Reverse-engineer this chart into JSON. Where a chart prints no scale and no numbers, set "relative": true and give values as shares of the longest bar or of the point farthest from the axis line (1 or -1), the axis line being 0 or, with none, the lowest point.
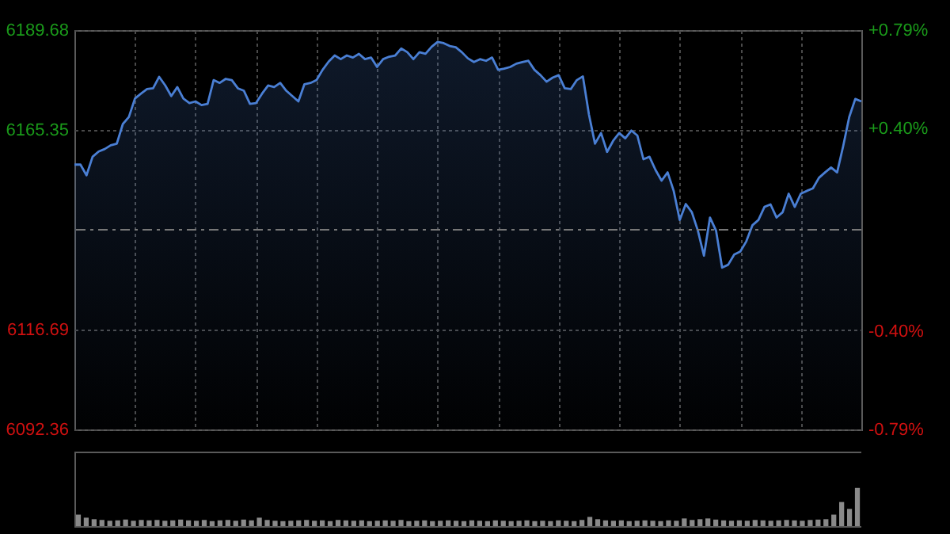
{
  "chart_data": [
    {
      "type": "area",
      "ylim": [
        6092.36,
        6189.68
      ],
      "yticks": [
        6092.36,
        6116.69,
        6165.35,
        6189.68
      ],
      "y2lim": [
        -0.79,
        0.79
      ],
      "y2ticks": [
        {
          "value": 0.79,
          "label": "+0.79%"
        },
        {
          "value": 0.4,
          "label": "+0.40%"
        },
        {
          "value": -0.4,
          "label": "-0.40%"
        },
        {
          "value": -0.79,
          "label": "-0.79%"
        }
      ],
      "grid": true,
      "line_style": "solid",
      "categories": [
        null,
        null,
        null,
        null,
        null,
        null,
        null,
        null,
        null,
        null,
        null,
        null,
        null,
        null,
        null,
        null,
        null,
        null,
        null,
        null,
        null,
        null,
        null,
        null,
        null,
        null,
        null,
        null,
        null,
        null,
        null,
        null,
        null,
        null,
        null,
        null,
        null,
        null,
        null,
        null,
        null,
        null,
        null,
        null,
        null,
        null,
        null,
        null,
        null,
        null,
        null,
        null,
        null,
        null,
        null,
        null,
        null,
        null,
        null,
        null,
        null,
        null,
        null,
        null,
        null,
        null,
        null,
        null,
        null,
        null,
        null,
        null,
        null,
        null,
        null,
        null,
        null,
        null,
        null,
        null,
        null,
        null,
        null,
        null,
        null,
        null,
        null,
        null,
        null,
        null,
        null,
        null,
        null,
        null,
        null,
        null,
        null,
        null,
        null,
        null,
        null,
        null,
        null,
        null,
        null,
        null,
        null,
        null,
        null,
        null,
        null,
        null,
        null,
        null,
        null,
        null,
        null,
        null,
        null,
        null,
        null,
        null,
        null,
        null,
        null,
        null,
        null,
        null,
        null,
        null,
        null
      ],
      "ref_lines": [
        {
          "axis": "y",
          "value": 6141.02,
          "line_style": "dashed",
          "color": "#777777"
        }
      ],
      "series": [
        {
          "color": "#4a7fd4",
          "values": [
            6156.9,
            6156.9,
            6154.3,
            6158.8,
            6160.1,
            6160.7,
            6161.6,
            6162.0,
            6166.8,
            6168.5,
            6173.0,
            6174.2,
            6175.3,
            6175.5,
            6178.3,
            6176.2,
            6173.6,
            6175.8,
            6173.0,
            6171.9,
            6172.3,
            6171.4,
            6171.7,
            6177.5,
            6176.8,
            6177.8,
            6177.5,
            6175.5,
            6174.9,
            6171.7,
            6171.9,
            6174.2,
            6176.2,
            6175.8,
            6176.8,
            6174.9,
            6173.6,
            6172.3,
            6176.5,
            6176.8,
            6177.5,
            6180.0,
            6182.0,
            6183.5,
            6182.6,
            6183.5,
            6183.0,
            6183.9,
            6182.6,
            6183.0,
            6180.7,
            6182.6,
            6183.2,
            6183.5,
            6185.2,
            6184.3,
            6182.6,
            6184.3,
            6183.9,
            6185.6,
            6186.8,
            6186.5,
            6185.8,
            6185.5,
            6184.3,
            6182.8,
            6181.9,
            6182.6,
            6182.2,
            6183.0,
            6180.0,
            6180.3,
            6180.7,
            6181.5,
            6181.9,
            6182.2,
            6180.0,
            6178.7,
            6177.1,
            6178.1,
            6178.7,
            6175.5,
            6175.3,
            6177.5,
            6178.4,
            6169.1,
            6162.0,
            6164.6,
            6160.0,
            6162.7,
            6164.6,
            6163.3,
            6165.2,
            6164.0,
            6158.2,
            6158.8,
            6155.6,
            6153.0,
            6155.0,
            6150.5,
            6143.4,
            6147.3,
            6145.3,
            6140.8,
            6134.7,
            6144.0,
            6140.8,
            6131.8,
            6132.5,
            6135.0,
            6135.7,
            6138.2,
            6142.1,
            6143.4,
            6146.6,
            6147.2,
            6144.0,
            6145.3,
            6149.8,
            6146.6,
            6149.8,
            6150.5,
            6151.1,
            6153.7,
            6155.0,
            6156.2,
            6155.0,
            6161.4,
            6168.5,
            6172.9,
            6172.3
          ]
        }
      ]
    },
    {
      "type": "bar",
      "relative": true,
      "categories": [
        null,
        null,
        null,
        null,
        null,
        null,
        null,
        null,
        null,
        null,
        null,
        null,
        null,
        null,
        null,
        null,
        null,
        null,
        null,
        null,
        null,
        null,
        null,
        null,
        null,
        null,
        null,
        null,
        null,
        null,
        null,
        null,
        null,
        null,
        null,
        null,
        null,
        null,
        null,
        null,
        null,
        null,
        null,
        null,
        null,
        null,
        null,
        null,
        null,
        null,
        null,
        null,
        null,
        null,
        null,
        null,
        null,
        null,
        null,
        null,
        null,
        null,
        null,
        null,
        null,
        null,
        null,
        null,
        null,
        null,
        null,
        null,
        null,
        null,
        null,
        null,
        null,
        null,
        null,
        null,
        null,
        null,
        null,
        null,
        null,
        null,
        null,
        null,
        null,
        null,
        null,
        null,
        null,
        null,
        null,
        null,
        null,
        null,
        null,
        null
      ],
      "series": [
        {
          "color": "#8a8a8a",
          "values": [
            0.3,
            0.22,
            0.18,
            0.16,
            0.14,
            0.15,
            0.17,
            0.14,
            0.16,
            0.15,
            0.16,
            0.14,
            0.15,
            0.17,
            0.15,
            0.14,
            0.16,
            0.13,
            0.15,
            0.16,
            0.14,
            0.17,
            0.15,
            0.22,
            0.16,
            0.14,
            0.13,
            0.14,
            0.15,
            0.16,
            0.14,
            0.15,
            0.13,
            0.16,
            0.15,
            0.14,
            0.15,
            0.13,
            0.14,
            0.15,
            0.14,
            0.16,
            0.13,
            0.14,
            0.15,
            0.13,
            0.14,
            0.15,
            0.14,
            0.13,
            0.15,
            0.14,
            0.13,
            0.15,
            0.14,
            0.13,
            0.14,
            0.15,
            0.13,
            0.14,
            0.13,
            0.15,
            0.14,
            0.13,
            0.16,
            0.24,
            0.18,
            0.15,
            0.14,
            0.15,
            0.13,
            0.14,
            0.15,
            0.14,
            0.13,
            0.15,
            0.14,
            0.2,
            0.16,
            0.18,
            0.2,
            0.17,
            0.15,
            0.14,
            0.15,
            0.14,
            0.16,
            0.15,
            0.14,
            0.15,
            0.16,
            0.15,
            0.14,
            0.16,
            0.17,
            0.18,
            0.3,
            0.63,
            0.45,
            1
          ]
        }
      ]
    }
  ]
}
